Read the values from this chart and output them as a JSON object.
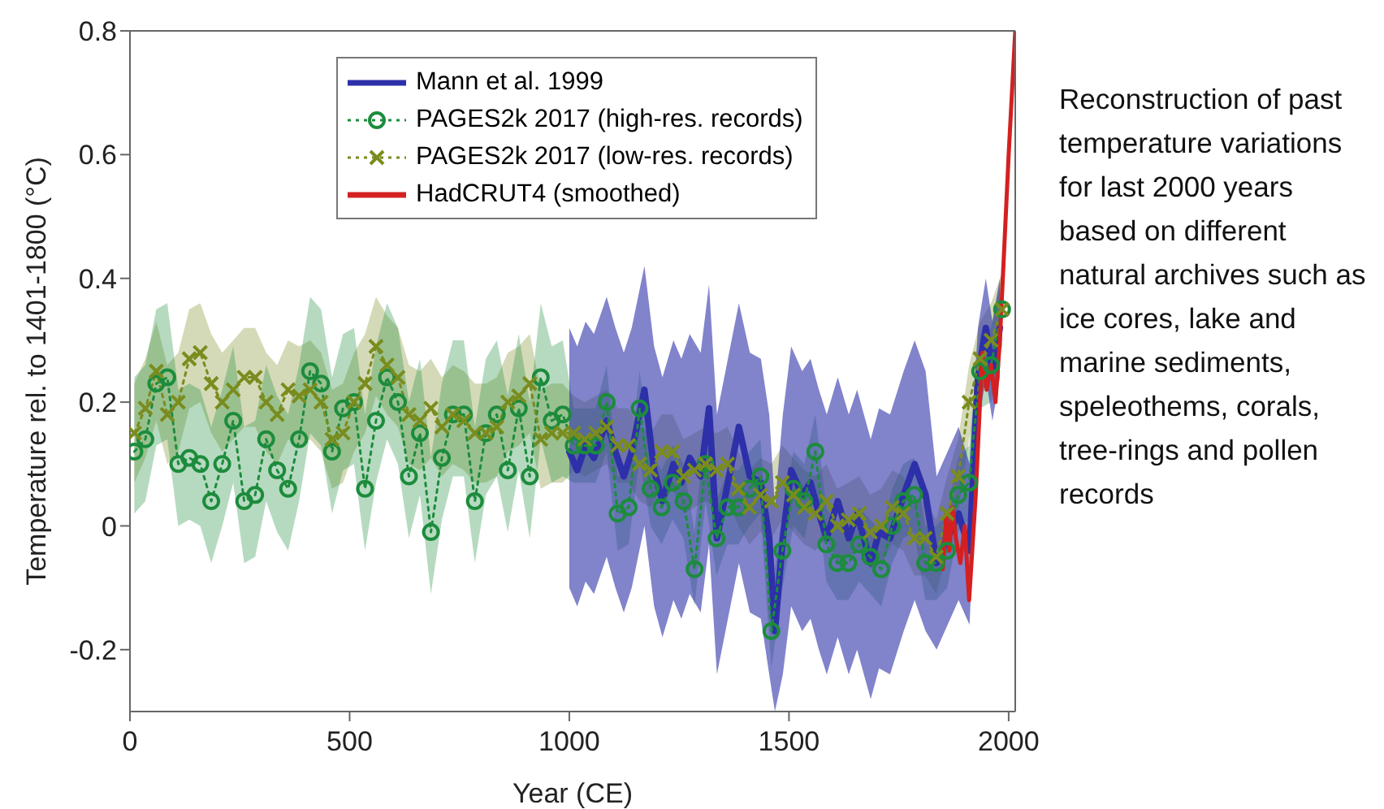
{
  "chart_data": {
    "type": "line",
    "xlabel": "Year (CE)",
    "ylabel": "Temperature rel. to 1401-1800 (°C)",
    "xlim": [
      0,
      2015
    ],
    "xticks": [
      0,
      500,
      1000,
      1500,
      2000
    ],
    "ylim": [
      -0.3,
      0.8
    ],
    "yticks": [
      -0.2,
      0,
      0.2,
      0.4,
      0.6,
      0.8
    ],
    "legend": "top",
    "grid": false,
    "annotations": [
      "Reconstruction of past temperature variations for last 2000 years based on different natural archives such as ice cores, lake and marine sediments, speleothems, corals, tree-rings and pollen records"
    ],
    "series": [
      {
        "name": "Mann et al. 1999",
        "color": "#2d30a8",
        "line_style": "solid",
        "marker": "none",
        "x": [
          1000,
          1018,
          1037,
          1056,
          1085,
          1105,
          1124,
          1142,
          1171,
          1193,
          1212,
          1237,
          1255,
          1274,
          1299,
          1318,
          1336,
          1361,
          1386,
          1411,
          1436,
          1455,
          1468,
          1486,
          1505,
          1530,
          1549,
          1568,
          1586,
          1611,
          1636,
          1655,
          1686,
          1705,
          1730,
          1761,
          1786,
          1811,
          1836,
          1861,
          1886,
          1911,
          1930,
          1948,
          1963,
          1980
        ],
        "values": [
          0.12,
          0.09,
          0.13,
          0.11,
          0.17,
          0.12,
          0.08,
          0.12,
          0.22,
          0.09,
          0.04,
          0.1,
          0.07,
          0.11,
          0.08,
          0.19,
          -0.02,
          0.07,
          0.16,
          0.08,
          0.07,
          -0.02,
          -0.17,
          -0.02,
          0.09,
          0.05,
          0.07,
          0.02,
          -0.02,
          0.04,
          -0.02,
          0.02,
          -0.06,
          -0.01,
          -0.02,
          0.05,
          0.1,
          0.05,
          -0.06,
          -0.02,
          0.02,
          -0.04,
          0.24,
          0.32,
          0.25,
          0.32
        ],
        "lower": [
          -0.1,
          -0.13,
          -0.09,
          -0.11,
          -0.05,
          -0.1,
          -0.14,
          -0.1,
          0.0,
          -0.13,
          -0.18,
          -0.12,
          -0.15,
          -0.11,
          -0.14,
          -0.03,
          -0.24,
          -0.15,
          -0.06,
          -0.14,
          -0.15,
          -0.24,
          -0.3,
          -0.24,
          -0.13,
          -0.17,
          -0.15,
          -0.2,
          -0.24,
          -0.18,
          -0.24,
          -0.2,
          -0.28,
          -0.23,
          -0.24,
          -0.17,
          -0.12,
          -0.17,
          -0.2,
          -0.16,
          -0.12,
          -0.16,
          0.16,
          0.24,
          0.17,
          0.24
        ],
        "upper": [
          0.32,
          0.29,
          0.33,
          0.31,
          0.37,
          0.32,
          0.28,
          0.32,
          0.42,
          0.29,
          0.24,
          0.3,
          0.27,
          0.31,
          0.28,
          0.39,
          0.18,
          0.27,
          0.36,
          0.28,
          0.27,
          0.18,
          0.03,
          0.18,
          0.29,
          0.25,
          0.27,
          0.22,
          0.18,
          0.24,
          0.18,
          0.22,
          0.14,
          0.19,
          0.18,
          0.25,
          0.3,
          0.25,
          0.08,
          0.12,
          0.16,
          0.1,
          0.32,
          0.4,
          0.33,
          0.4
        ]
      },
      {
        "name": "PAGES2k 2017 (high-res. records)",
        "color": "#1c8c3c",
        "line_style": "dotted",
        "marker": "circle",
        "x": [
          10,
          35,
          60,
          85,
          110,
          135,
          160,
          185,
          210,
          235,
          260,
          285,
          310,
          335,
          360,
          385,
          410,
          435,
          460,
          485,
          510,
          535,
          560,
          585,
          610,
          635,
          660,
          685,
          710,
          735,
          760,
          785,
          810,
          835,
          860,
          885,
          910,
          935,
          960,
          985,
          1010,
          1035,
          1060,
          1085,
          1110,
          1135,
          1160,
          1185,
          1210,
          1235,
          1260,
          1285,
          1310,
          1335,
          1360,
          1385,
          1410,
          1435,
          1460,
          1485,
          1510,
          1535,
          1560,
          1585,
          1610,
          1635,
          1660,
          1685,
          1710,
          1735,
          1760,
          1785,
          1810,
          1835,
          1860,
          1885,
          1910,
          1935,
          1960,
          1985
        ],
        "values": [
          0.12,
          0.14,
          0.23,
          0.24,
          0.1,
          0.11,
          0.1,
          0.04,
          0.1,
          0.17,
          0.04,
          0.05,
          0.14,
          0.09,
          0.06,
          0.14,
          0.25,
          0.23,
          0.12,
          0.19,
          0.2,
          0.06,
          0.17,
          0.24,
          0.2,
          0.08,
          0.15,
          -0.01,
          0.11,
          0.18,
          0.18,
          0.04,
          0.15,
          0.18,
          0.09,
          0.19,
          0.08,
          0.24,
          0.17,
          0.18,
          0.13,
          0.13,
          0.13,
          0.2,
          0.02,
          0.03,
          0.19,
          0.06,
          0.03,
          0.07,
          0.04,
          -0.07,
          0.1,
          -0.02,
          0.03,
          0.03,
          0.06,
          0.08,
          -0.17,
          -0.04,
          0.06,
          0.04,
          0.12,
          -0.03,
          -0.06,
          -0.06,
          -0.03,
          -0.05,
          -0.07,
          0.0,
          0.04,
          0.05,
          -0.06,
          -0.06,
          -0.04,
          0.05,
          0.07,
          0.25,
          0.26,
          0.35
        ],
        "lower": [
          0.02,
          0.04,
          0.13,
          0.14,
          0.0,
          0.01,
          0.0,
          -0.06,
          0.0,
          0.07,
          -0.06,
          -0.05,
          0.04,
          -0.01,
          -0.04,
          0.04,
          0.15,
          0.13,
          0.02,
          0.09,
          0.1,
          -0.04,
          0.07,
          0.14,
          0.1,
          -0.02,
          0.05,
          -0.11,
          0.01,
          0.08,
          0.08,
          -0.06,
          0.05,
          0.08,
          -0.01,
          0.09,
          -0.02,
          0.14,
          0.07,
          0.08,
          0.07,
          0.07,
          0.07,
          0.12,
          -0.04,
          -0.03,
          0.11,
          0.0,
          -0.03,
          0.01,
          -0.02,
          -0.13,
          0.04,
          -0.08,
          -0.03,
          -0.03,
          0.0,
          0.02,
          -0.23,
          -0.1,
          0.0,
          -0.02,
          0.06,
          -0.09,
          -0.12,
          -0.12,
          -0.09,
          -0.11,
          -0.13,
          -0.06,
          -0.02,
          -0.01,
          -0.12,
          -0.12,
          -0.1,
          -0.01,
          0.01,
          0.19,
          0.2,
          0.29
        ],
        "upper": [
          0.24,
          0.26,
          0.35,
          0.36,
          0.22,
          0.23,
          0.22,
          0.16,
          0.22,
          0.29,
          0.16,
          0.17,
          0.26,
          0.21,
          0.18,
          0.26,
          0.37,
          0.35,
          0.24,
          0.31,
          0.32,
          0.18,
          0.29,
          0.36,
          0.32,
          0.2,
          0.27,
          0.11,
          0.23,
          0.3,
          0.3,
          0.16,
          0.27,
          0.3,
          0.21,
          0.31,
          0.2,
          0.36,
          0.29,
          0.3,
          0.19,
          0.19,
          0.19,
          0.26,
          0.08,
          0.09,
          0.25,
          0.12,
          0.09,
          0.13,
          0.1,
          -0.01,
          0.16,
          0.04,
          0.09,
          0.09,
          0.12,
          0.14,
          -0.11,
          0.02,
          0.12,
          0.1,
          0.18,
          0.03,
          0.0,
          0.0,
          0.03,
          0.01,
          -0.01,
          0.06,
          0.1,
          0.11,
          0.0,
          0.0,
          0.02,
          0.11,
          0.13,
          0.31,
          0.32,
          0.41
        ]
      },
      {
        "name": "PAGES2k 2017 (low-res. records)",
        "color": "#7a8c1e",
        "line_style": "dotted",
        "marker": "cross",
        "x": [
          10,
          35,
          60,
          85,
          110,
          135,
          160,
          185,
          210,
          235,
          260,
          285,
          310,
          335,
          360,
          385,
          410,
          435,
          460,
          485,
          510,
          535,
          560,
          585,
          610,
          635,
          660,
          685,
          710,
          735,
          760,
          785,
          810,
          835,
          860,
          885,
          910,
          935,
          960,
          985,
          1010,
          1035,
          1060,
          1085,
          1110,
          1135,
          1160,
          1185,
          1210,
          1235,
          1260,
          1285,
          1310,
          1335,
          1360,
          1385,
          1410,
          1435,
          1460,
          1485,
          1510,
          1535,
          1560,
          1585,
          1610,
          1635,
          1660,
          1685,
          1710,
          1735,
          1760,
          1785,
          1810,
          1835,
          1860,
          1885,
          1910,
          1935,
          1960,
          1985
        ],
        "values": [
          0.15,
          0.19,
          0.25,
          0.18,
          0.2,
          0.27,
          0.28,
          0.23,
          0.2,
          0.22,
          0.24,
          0.24,
          0.2,
          0.18,
          0.22,
          0.21,
          0.22,
          0.2,
          0.14,
          0.15,
          0.2,
          0.23,
          0.29,
          0.26,
          0.24,
          0.18,
          0.17,
          0.19,
          0.16,
          0.18,
          0.17,
          0.15,
          0.15,
          0.16,
          0.2,
          0.21,
          0.23,
          0.14,
          0.15,
          0.15,
          0.15,
          0.14,
          0.15,
          0.16,
          0.13,
          0.13,
          0.1,
          0.09,
          0.12,
          0.12,
          0.08,
          0.09,
          0.1,
          0.09,
          0.1,
          0.06,
          0.03,
          0.05,
          0.04,
          0.07,
          0.05,
          0.03,
          0.02,
          0.04,
          0.0,
          0.01,
          0.02,
          -0.01,
          0.0,
          0.03,
          0.02,
          -0.02,
          -0.02,
          -0.05,
          0.02,
          0.08,
          0.2,
          0.27,
          0.3,
          0.35
        ],
        "lower": [
          0.07,
          0.11,
          0.17,
          0.1,
          0.12,
          0.19,
          0.2,
          0.15,
          0.12,
          0.14,
          0.16,
          0.16,
          0.12,
          0.1,
          0.14,
          0.13,
          0.14,
          0.12,
          0.06,
          0.07,
          0.12,
          0.15,
          0.21,
          0.18,
          0.16,
          0.1,
          0.09,
          0.11,
          0.08,
          0.1,
          0.09,
          0.07,
          0.07,
          0.08,
          0.12,
          0.13,
          0.15,
          0.06,
          0.07,
          0.07,
          0.09,
          0.08,
          0.09,
          0.1,
          0.07,
          0.07,
          0.04,
          0.03,
          0.06,
          0.06,
          0.02,
          0.03,
          0.04,
          0.03,
          0.04,
          0.0,
          -0.03,
          -0.01,
          -0.02,
          0.01,
          -0.01,
          -0.03,
          -0.04,
          -0.02,
          -0.06,
          -0.05,
          -0.04,
          -0.07,
          -0.06,
          -0.03,
          -0.04,
          -0.08,
          -0.08,
          -0.11,
          -0.04,
          0.02,
          0.14,
          0.21,
          0.24,
          0.29
        ],
        "upper": [
          0.23,
          0.27,
          0.33,
          0.26,
          0.28,
          0.35,
          0.36,
          0.31,
          0.28,
          0.3,
          0.32,
          0.32,
          0.28,
          0.26,
          0.3,
          0.29,
          0.3,
          0.28,
          0.22,
          0.23,
          0.28,
          0.31,
          0.37,
          0.34,
          0.32,
          0.26,
          0.25,
          0.27,
          0.24,
          0.26,
          0.25,
          0.23,
          0.23,
          0.24,
          0.28,
          0.29,
          0.31,
          0.22,
          0.23,
          0.23,
          0.21,
          0.2,
          0.21,
          0.22,
          0.19,
          0.19,
          0.16,
          0.15,
          0.18,
          0.18,
          0.14,
          0.15,
          0.16,
          0.15,
          0.16,
          0.12,
          0.09,
          0.11,
          0.1,
          0.13,
          0.11,
          0.09,
          0.08,
          0.1,
          0.06,
          0.07,
          0.08,
          0.05,
          0.06,
          0.09,
          0.08,
          0.04,
          0.04,
          0.01,
          0.08,
          0.14,
          0.26,
          0.33,
          0.36,
          0.41
        ]
      },
      {
        "name": "HadCRUT4 (smoothed)",
        "color": "#d42020",
        "line_style": "solid",
        "marker": "none",
        "x": [
          1850,
          1858,
          1865,
          1872,
          1880,
          1890,
          1900,
          1910,
          1925,
          1940,
          1950,
          1960,
          1970,
          1980,
          1990,
          2000,
          2015
        ],
        "values": [
          -0.07,
          0.02,
          -0.04,
          0.03,
          -0.02,
          -0.06,
          0.0,
          -0.12,
          0.05,
          0.28,
          0.22,
          0.26,
          0.2,
          0.3,
          0.45,
          0.6,
          0.8
        ]
      }
    ]
  }
}
